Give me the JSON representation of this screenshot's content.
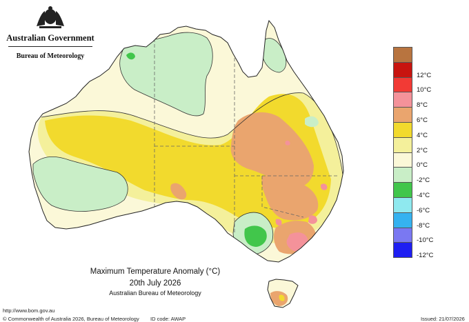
{
  "header": {
    "government": "Australian Government",
    "bureau": "Bureau of Meteorology"
  },
  "map_title": {
    "line1": "Maximum Temperature Anomaly (°C)",
    "line2": "20th July 2026",
    "line3": "Australian Bureau of Meteorology"
  },
  "footer": {
    "url": "http://www.bom.gov.au",
    "copyright": "© Commonwealth of Australia 2026, Bureau of Meteorology",
    "id_code": "ID code: AWAP",
    "issued": "Issued: 21/07/2026"
  },
  "legend": [
    {
      "label": "",
      "color": "#b8743f"
    },
    {
      "label": "12°C",
      "color": "#c8140f"
    },
    {
      "label": "10°C",
      "color": "#f23a35"
    },
    {
      "label": "8°C",
      "color": "#f4929a"
    },
    {
      "label": "6°C",
      "color": "#eaa56e"
    },
    {
      "label": "4°C",
      "color": "#f2da2d"
    },
    {
      "label": "2°C",
      "color": "#f4f09b"
    },
    {
      "label": "0°C",
      "color": "#fbf8d8"
    },
    {
      "label": "-2°C",
      "color": "#c9eec7"
    },
    {
      "label": "-4°C",
      "color": "#41c64b"
    },
    {
      "label": "-6°C",
      "color": "#8fe9ef"
    },
    {
      "label": "-8°C",
      "color": "#35b2f0"
    },
    {
      "label": "-10°C",
      "color": "#7a78f2"
    },
    {
      "label": "-12°C",
      "color": "#1e1ef2"
    }
  ]
}
